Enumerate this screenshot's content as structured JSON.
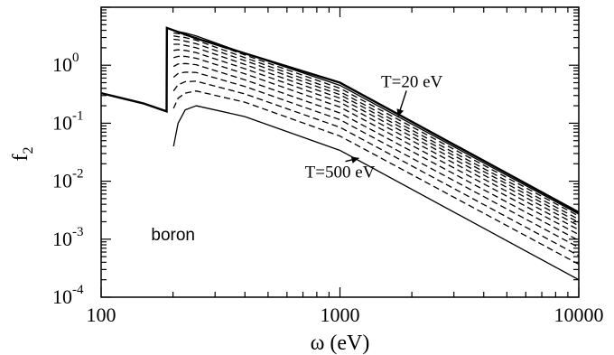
{
  "chart_data": {
    "type": "line",
    "title": "",
    "xlabel": "ω (eV)",
    "ylabel": "f",
    "ylabel_subscript": "2",
    "x_scale": "log",
    "y_scale": "log",
    "xlim": [
      100,
      10000
    ],
    "ylim": [
      0.0001,
      10
    ],
    "x_ticks": [
      {
        "value": 100,
        "label": "100"
      },
      {
        "value": 1000,
        "label": "1000"
      },
      {
        "value": 10000,
        "label": "10000"
      }
    ],
    "y_ticks": [
      {
        "value": 0.0001,
        "base": "10",
        "exp": "-4"
      },
      {
        "value": 0.001,
        "base": "10",
        "exp": "-3"
      },
      {
        "value": 0.01,
        "base": "10",
        "exp": "-2"
      },
      {
        "value": 0.1,
        "base": "10",
        "exp": "-1"
      },
      {
        "value": 1,
        "base": "10",
        "exp": "0"
      }
    ],
    "grid": false,
    "cold_curve": {
      "x": [
        100,
        150,
        188,
        188.5,
        250,
        400,
        1000,
        10000
      ],
      "y": [
        0.33,
        0.22,
        0.16,
        4.4,
        2.9,
        1.6,
        0.5,
        0.0029
      ]
    },
    "series": [
      {
        "style": "solid",
        "x": [
          201,
          210,
          225,
          250,
          400,
          1000,
          10000
        ],
        "y": [
          3.9,
          3.8,
          3.6,
          3.2,
          1.6,
          0.45,
          0.0027
        ]
      },
      {
        "style": "dashed",
        "x": [
          201,
          210,
          225,
          250,
          400,
          1000,
          10000
        ],
        "y": [
          3.6,
          3.5,
          3.3,
          3.0,
          1.5,
          0.4,
          0.0025
        ]
      },
      {
        "style": "dashed",
        "x": [
          201,
          210,
          225,
          250,
          400,
          1000,
          10000
        ],
        "y": [
          3.2,
          3.1,
          3.0,
          2.7,
          1.35,
          0.35,
          0.0022
        ]
      },
      {
        "style": "dashed",
        "x": [
          201,
          210,
          225,
          250,
          400,
          1000,
          10000
        ],
        "y": [
          2.8,
          2.75,
          2.6,
          2.35,
          1.2,
          0.31,
          0.00195
        ]
      },
      {
        "style": "dashed",
        "x": [
          201,
          210,
          225,
          250,
          400,
          1000,
          10000
        ],
        "y": [
          2.3,
          2.3,
          2.2,
          2.0,
          1.03,
          0.27,
          0.0017
        ]
      },
      {
        "style": "dashed",
        "x": [
          201,
          210,
          225,
          250,
          400,
          1000,
          10000
        ],
        "y": [
          1.8,
          1.85,
          1.8,
          1.65,
          0.87,
          0.23,
          0.00145
        ]
      },
      {
        "style": "dashed",
        "x": [
          201,
          210,
          225,
          250,
          400,
          1000,
          10000
        ],
        "y": [
          1.35,
          1.42,
          1.42,
          1.32,
          0.71,
          0.19,
          0.0012
        ]
      },
      {
        "style": "dashed",
        "x": [
          201,
          210,
          225,
          250,
          400,
          1000,
          10000
        ],
        "y": [
          0.95,
          1.05,
          1.07,
          1.02,
          0.56,
          0.15,
          0.00095
        ]
      },
      {
        "style": "dashed",
        "x": [
          201,
          210,
          225,
          250,
          400,
          1000,
          10000
        ],
        "y": [
          0.62,
          0.72,
          0.76,
          0.75,
          0.43,
          0.115,
          0.00072
        ]
      },
      {
        "style": "dashed",
        "x": [
          201,
          210,
          225,
          250,
          400,
          1000,
          10000
        ],
        "y": [
          0.36,
          0.46,
          0.52,
          0.53,
          0.32,
          0.085,
          0.00052
        ]
      },
      {
        "style": "dashed",
        "x": [
          201,
          210,
          225,
          250,
          400,
          1000,
          10000
        ],
        "y": [
          0.18,
          0.27,
          0.33,
          0.36,
          0.23,
          0.06,
          0.00037
        ]
      },
      {
        "style": "solid",
        "x": [
          201,
          210,
          225,
          250,
          400,
          1000,
          10000
        ],
        "y": [
          0.04,
          0.1,
          0.17,
          0.2,
          0.13,
          0.034,
          0.0002
        ]
      }
    ],
    "annotations": [
      {
        "text": "T=20 eV",
        "text_x": 2000,
        "text_y": 0.42,
        "arrow_to_x": 1750,
        "arrow_to_y": 0.13
      },
      {
        "text": "T=500 eV",
        "text_x": 1000,
        "text_y": 0.0115,
        "arrow_to_x": 1200,
        "arrow_to_y": 0.025
      }
    ],
    "element_label": {
      "text": "boron",
      "x": 162,
      "y": 0.00095
    }
  }
}
